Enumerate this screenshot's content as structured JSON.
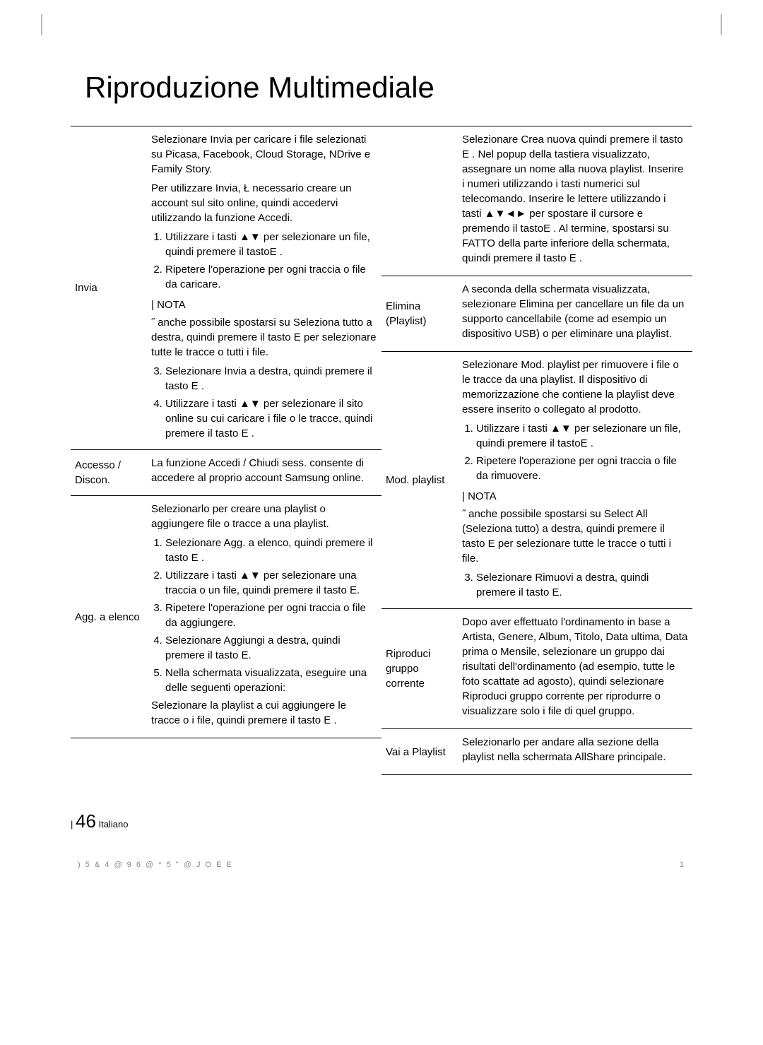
{
  "page": {
    "title": "Riproduzione Multimediale",
    "footer_pagenum": "46",
    "footer_lang": "Italiano",
    "footer_code_left": ") 5  & 4      @ 9 6 @ * 5 \" @       J O E E",
    "footer_code_right": "1"
  },
  "left_table": [
    {
      "label": "Invia",
      "body": {
        "intro1": "Selezionare Invia per caricare i file selezionati su Picasa, Facebook, Cloud Storage, NDrive e Family Story.",
        "intro2": "Per utilizzare Invia, Ł necessario creare un account sul sito online, quindi accedervi utilizzando la funzione Accedi.",
        "steps_a": [
          "Utilizzare i tasti ▲▼ per selezionare un file, quindi premere il tastoE .",
          "Ripetere l'operazione per ogni traccia o file da caricare."
        ],
        "nota_label": "NOTA",
        "nota_text": "˝ anche possibile spostarsi su Seleziona tutto a destra, quindi premere il tasto E per selezionare tutte le tracce o tutti i file.",
        "steps_b": [
          "Selezionare Invia a destra, quindi premere il tasto E .",
          "Utilizzare i tasti ▲▼ per selezionare il sito online su cui caricare i file o le tracce, quindi premere il tasto E ."
        ]
      }
    },
    {
      "label": "Accesso / Discon.",
      "body": {
        "text": "La funzione Accedi / Chiudi sess. consente di accedere al proprio account Samsung online."
      }
    },
    {
      "label": "Agg. a elenco",
      "body": {
        "intro": "Selezionarlo per creare una playlist o aggiungere file o tracce a una playlist.",
        "steps": [
          "Selezionare Agg. a elenco, quindi premere il tasto E .",
          "Utilizzare i tasti ▲▼ per selezionare una traccia o un file, quindi premere il tasto E.",
          "Ripetere l'operazione per ogni traccia o file da aggiungere.",
          "Selezionare Aggiungi a destra, quindi premere il tasto E.",
          "Nella schermata visualizzata, eseguire una delle seguenti operazioni:"
        ],
        "trail": "Selezionare la playlist a cui aggiungere le tracce o i file, quindi premere il tasto E ."
      }
    }
  ],
  "right_table": [
    {
      "label": "",
      "body": {
        "text": "Selezionare Crea nuova quindi premere il tasto E . Nel popup della tastiera visualizzato, assegnare un nome alla nuova playlist. Inserire i numeri utilizzando i tasti numerici sul telecomando. Inserire le lettere utilizzando i tasti ▲▼◄► per spostare il cursore e premendo il tastoE . Al termine, spostarsi su FATTO della parte inferiore della schermata, quindi premere il tasto E ."
      }
    },
    {
      "label": "Elimina (Playlist)",
      "body": {
        "text": "A seconda della schermata visualizzata, selezionare Elimina per cancellare un file da un supporto cancellabile (come ad esempio un dispositivo USB) o per eliminare una playlist."
      }
    },
    {
      "label": "Mod. playlist",
      "body": {
        "intro": "Selezionare Mod. playlist per rimuovere i file o le tracce da una playlist. Il dispositivo di memorizzazione che contiene la playlist deve essere inserito o collegato al prodotto.",
        "steps_a": [
          "Utilizzare i tasti ▲▼ per selezionare un file, quindi premere il tastoE .",
          "Ripetere l'operazione per ogni traccia o file da rimuovere."
        ],
        "nota_label": "NOTA",
        "nota_text": "˝ anche possibile spostarsi su Select All (Seleziona tutto) a destra, quindi premere il tasto E per selezionare tutte le tracce o tutti i file.",
        "steps_b": [
          "Selezionare Rimuovi a destra, quindi premere il tasto E."
        ]
      }
    },
    {
      "label": "Riproduci gruppo corrente",
      "body": {
        "text": "Dopo aver effettuato l'ordinamento in base a Artista, Genere, Album, Titolo, Data ultima, Data prima o Mensile, selezionare un gruppo dai risultati dell'ordinamento (ad esempio, tutte le foto scattate ad agosto), quindi selezionare Riproduci gruppo corrente per riprodurre o visualizzare solo i file di quel gruppo."
      }
    },
    {
      "label": "Vai a Playlist",
      "body": {
        "text": "Selezionarlo per andare alla sezione della playlist nella schermata AllShare principale."
      }
    }
  ]
}
